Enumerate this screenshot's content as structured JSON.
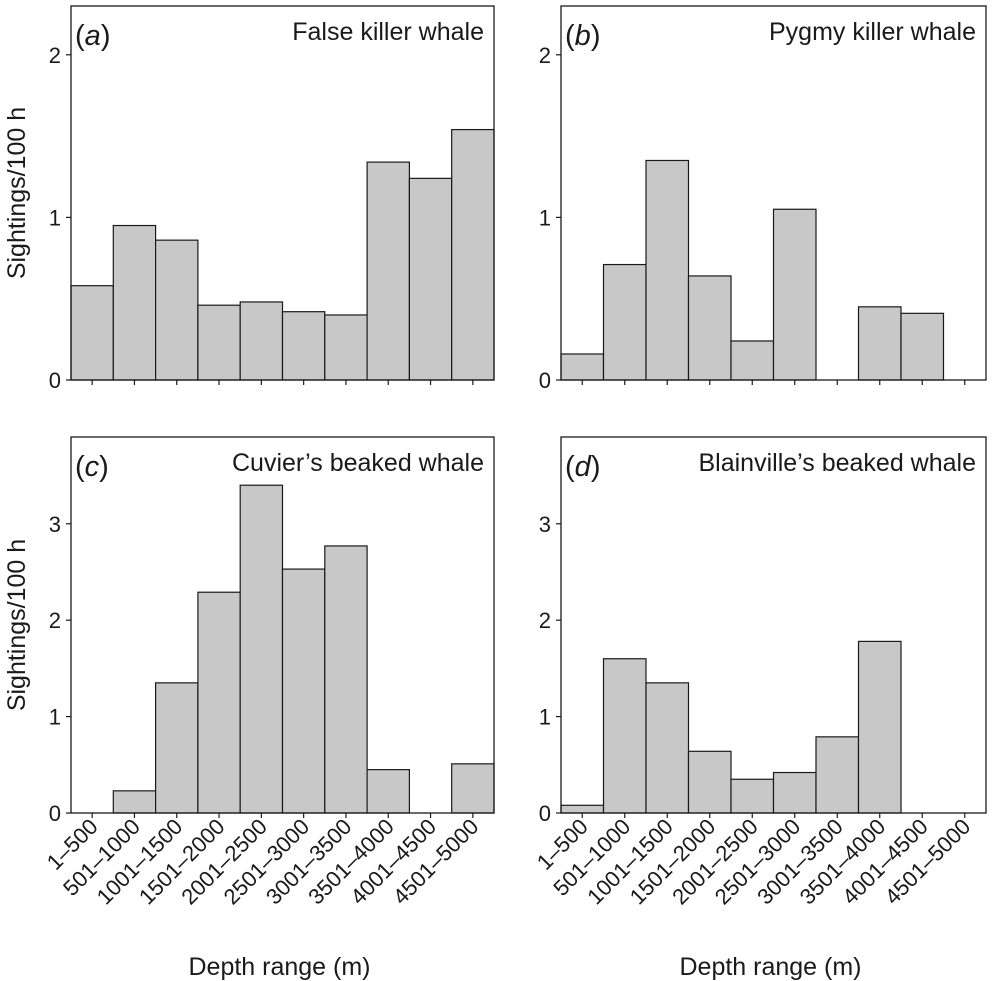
{
  "chart_data": [
    {
      "type": "bar",
      "panel": "a",
      "title": "False killer whale",
      "categories": [
        "1–500",
        "501–1000",
        "1001–1500",
        "1501–2000",
        "2001–2500",
        "2501–3000",
        "3001–3500",
        "3501–4000",
        "4001–4500",
        "4501–5000"
      ],
      "values": [
        0.58,
        0.95,
        0.86,
        0.46,
        0.48,
        0.42,
        0.4,
        1.34,
        1.24,
        1.54
      ],
      "ylabel": "Sightings/100 h",
      "xlabel": "",
      "ylim": [
        0,
        2.3
      ],
      "yticks": [
        0,
        1,
        2
      ],
      "ytick_labels": [
        "0",
        "1",
        "2"
      ],
      "show_x_tick_labels": false
    },
    {
      "type": "bar",
      "panel": "b",
      "title": "Pygmy killer whale",
      "categories": [
        "1–500",
        "501–1000",
        "1001–1500",
        "1501–2000",
        "2001–2500",
        "2501–3000",
        "3001–3500",
        "3501–4000",
        "4001–4500",
        "4501–5000"
      ],
      "values": [
        0.16,
        0.71,
        1.35,
        0.64,
        0.24,
        1.05,
        0,
        0.45,
        0.41,
        0
      ],
      "ylabel": "",
      "xlabel": "",
      "ylim": [
        0,
        2.3
      ],
      "yticks": [
        0,
        1,
        2
      ],
      "ytick_labels": [
        "0",
        "1",
        "2"
      ],
      "show_x_tick_labels": false
    },
    {
      "type": "bar",
      "panel": "c",
      "title": "Cuvier’s beaked whale",
      "categories": [
        "1–500",
        "501–1000",
        "1001–1500",
        "1501–2000",
        "2001–2500",
        "2501–3000",
        "3001–3500",
        "3501–4000",
        "4001–4500",
        "4501–5000"
      ],
      "values": [
        0,
        0.23,
        1.35,
        2.29,
        3.4,
        2.53,
        2.77,
        0.45,
        0,
        0.51
      ],
      "ylabel": "Sightings/100 h",
      "xlabel": "Depth range (m)",
      "ylim": [
        0,
        3.9
      ],
      "yticks": [
        0,
        1,
        2,
        3
      ],
      "ytick_labels": [
        "0",
        "1",
        "2",
        "3"
      ],
      "show_x_tick_labels": true
    },
    {
      "type": "bar",
      "panel": "d",
      "title": "Blainville’s beaked whale",
      "categories": [
        "1–500",
        "501–1000",
        "1001–1500",
        "1501–2000",
        "2001–2500",
        "2501–3000",
        "3001–3500",
        "3501–4000",
        "4001–4500",
        "4501–5000"
      ],
      "values": [
        0.08,
        1.6,
        1.35,
        0.64,
        0.35,
        0.42,
        0.79,
        1.78,
        0,
        0
      ],
      "ylabel": "",
      "xlabel": "Depth range (m)",
      "ylim": [
        0,
        3.9
      ],
      "yticks": [
        0,
        1,
        2,
        3
      ],
      "ytick_labels": [
        "0",
        "1",
        "2",
        "3"
      ],
      "show_x_tick_labels": true
    }
  ]
}
